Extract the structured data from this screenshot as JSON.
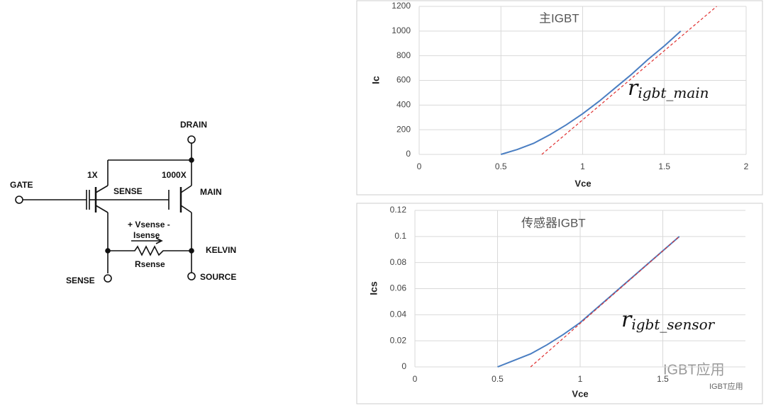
{
  "diagram": {
    "labels": [
      "GATE",
      "DRAIN",
      "1X",
      "1000X",
      "SENSE",
      "MAIN",
      "+ Vsense -",
      "Isense",
      "Rsense",
      "KELVIN",
      "SENSE",
      "SOURCE"
    ]
  },
  "watermark": [
    "IGBT应用",
    "IGBT应用"
  ],
  "chart_data": [
    {
      "type": "line",
      "title": "主IGBT",
      "x_label": "Vce",
      "y_label": "Ic",
      "xlim": [
        0,
        2
      ],
      "xticks": [
        0,
        0.5,
        1,
        1.5,
        2
      ],
      "ylim": [
        0,
        1200
      ],
      "yticks": [
        0,
        200,
        400,
        600,
        800,
        1000,
        1200
      ],
      "grid": true,
      "annotation": {
        "base": "r",
        "sub": "igbt_main"
      },
      "series": [
        {
          "color": "#4a7ec2",
          "dash": false,
          "x": [
            0.5,
            0.6,
            0.7,
            0.8,
            0.9,
            1.0,
            1.1,
            1.2,
            1.3,
            1.4,
            1.5,
            1.6
          ],
          "values": [
            0,
            40,
            90,
            160,
            240,
            330,
            430,
            540,
            650,
            770,
            880,
            1000
          ]
        },
        {
          "color": "#e03030",
          "dash": true,
          "x": [
            0.75,
            1.82
          ],
          "values": [
            0,
            1200
          ]
        }
      ]
    },
    {
      "type": "line",
      "title": "传感器IGBT",
      "x_label": "Vce",
      "y_label": "Ics",
      "xlim": [
        0,
        2
      ],
      "xticks": [
        0,
        0.5,
        1,
        1.5
      ],
      "ylim": [
        0,
        0.12
      ],
      "yticks": [
        0,
        0.02,
        0.04,
        0.06,
        0.08,
        0.1,
        0.12
      ],
      "grid": true,
      "annotation": {
        "base": "r",
        "sub": "igbt_sensor"
      },
      "series": [
        {
          "color": "#4a7ec2",
          "dash": false,
          "x": [
            0.5,
            0.6,
            0.7,
            0.8,
            0.9,
            1.0,
            1.1,
            1.2,
            1.3,
            1.4,
            1.5,
            1.6
          ],
          "values": [
            0,
            0.005,
            0.01,
            0.017,
            0.025,
            0.034,
            0.045,
            0.056,
            0.067,
            0.078,
            0.089,
            0.1
          ]
        },
        {
          "color": "#e03030",
          "dash": true,
          "x": [
            0.7,
            1.6
          ],
          "values": [
            0,
            0.1
          ]
        }
      ]
    }
  ]
}
